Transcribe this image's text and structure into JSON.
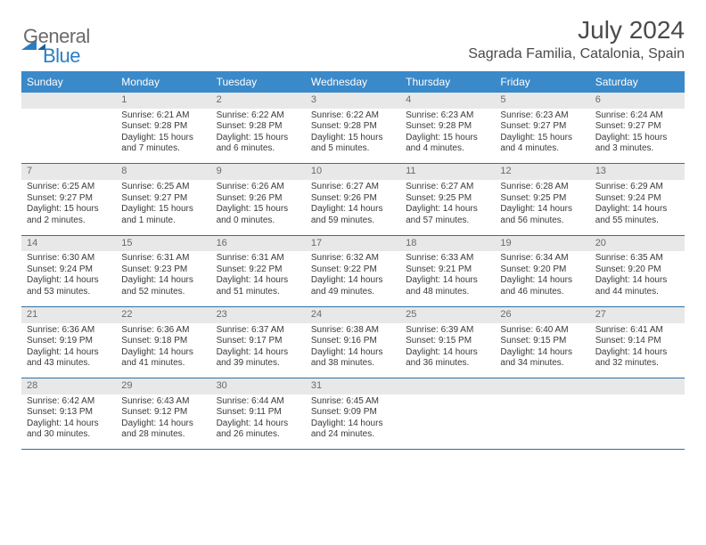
{
  "logo": {
    "general": "General",
    "blue": "Blue",
    "tri_color": "#2b7ec2",
    "text_gray": "#6a6a6a"
  },
  "title": "July 2024",
  "location": "Sagrada Familia, Catalonia, Spain",
  "colors": {
    "header_bg": "#3a89c9",
    "header_text": "#ffffff",
    "daynum_bg": "#e8e8e8",
    "daynum_text": "#6a6a6a",
    "rule": "#2f6fa3",
    "body_text": "#3a3a3a"
  },
  "day_headers": [
    "Sunday",
    "Monday",
    "Tuesday",
    "Wednesday",
    "Thursday",
    "Friday",
    "Saturday"
  ],
  "weeks": [
    [
      null,
      {
        "n": "1",
        "sunrise": "Sunrise: 6:21 AM",
        "sunset": "Sunset: 9:28 PM",
        "daylight": "Daylight: 15 hours and 7 minutes."
      },
      {
        "n": "2",
        "sunrise": "Sunrise: 6:22 AM",
        "sunset": "Sunset: 9:28 PM",
        "daylight": "Daylight: 15 hours and 6 minutes."
      },
      {
        "n": "3",
        "sunrise": "Sunrise: 6:22 AM",
        "sunset": "Sunset: 9:28 PM",
        "daylight": "Daylight: 15 hours and 5 minutes."
      },
      {
        "n": "4",
        "sunrise": "Sunrise: 6:23 AM",
        "sunset": "Sunset: 9:28 PM",
        "daylight": "Daylight: 15 hours and 4 minutes."
      },
      {
        "n": "5",
        "sunrise": "Sunrise: 6:23 AM",
        "sunset": "Sunset: 9:27 PM",
        "daylight": "Daylight: 15 hours and 4 minutes."
      },
      {
        "n": "6",
        "sunrise": "Sunrise: 6:24 AM",
        "sunset": "Sunset: 9:27 PM",
        "daylight": "Daylight: 15 hours and 3 minutes."
      }
    ],
    [
      {
        "n": "7",
        "sunrise": "Sunrise: 6:25 AM",
        "sunset": "Sunset: 9:27 PM",
        "daylight": "Daylight: 15 hours and 2 minutes."
      },
      {
        "n": "8",
        "sunrise": "Sunrise: 6:25 AM",
        "sunset": "Sunset: 9:27 PM",
        "daylight": "Daylight: 15 hours and 1 minute."
      },
      {
        "n": "9",
        "sunrise": "Sunrise: 6:26 AM",
        "sunset": "Sunset: 9:26 PM",
        "daylight": "Daylight: 15 hours and 0 minutes."
      },
      {
        "n": "10",
        "sunrise": "Sunrise: 6:27 AM",
        "sunset": "Sunset: 9:26 PM",
        "daylight": "Daylight: 14 hours and 59 minutes."
      },
      {
        "n": "11",
        "sunrise": "Sunrise: 6:27 AM",
        "sunset": "Sunset: 9:25 PM",
        "daylight": "Daylight: 14 hours and 57 minutes."
      },
      {
        "n": "12",
        "sunrise": "Sunrise: 6:28 AM",
        "sunset": "Sunset: 9:25 PM",
        "daylight": "Daylight: 14 hours and 56 minutes."
      },
      {
        "n": "13",
        "sunrise": "Sunrise: 6:29 AM",
        "sunset": "Sunset: 9:24 PM",
        "daylight": "Daylight: 14 hours and 55 minutes."
      }
    ],
    [
      {
        "n": "14",
        "sunrise": "Sunrise: 6:30 AM",
        "sunset": "Sunset: 9:24 PM",
        "daylight": "Daylight: 14 hours and 53 minutes."
      },
      {
        "n": "15",
        "sunrise": "Sunrise: 6:31 AM",
        "sunset": "Sunset: 9:23 PM",
        "daylight": "Daylight: 14 hours and 52 minutes."
      },
      {
        "n": "16",
        "sunrise": "Sunrise: 6:31 AM",
        "sunset": "Sunset: 9:22 PM",
        "daylight": "Daylight: 14 hours and 51 minutes."
      },
      {
        "n": "17",
        "sunrise": "Sunrise: 6:32 AM",
        "sunset": "Sunset: 9:22 PM",
        "daylight": "Daylight: 14 hours and 49 minutes."
      },
      {
        "n": "18",
        "sunrise": "Sunrise: 6:33 AM",
        "sunset": "Sunset: 9:21 PM",
        "daylight": "Daylight: 14 hours and 48 minutes."
      },
      {
        "n": "19",
        "sunrise": "Sunrise: 6:34 AM",
        "sunset": "Sunset: 9:20 PM",
        "daylight": "Daylight: 14 hours and 46 minutes."
      },
      {
        "n": "20",
        "sunrise": "Sunrise: 6:35 AM",
        "sunset": "Sunset: 9:20 PM",
        "daylight": "Daylight: 14 hours and 44 minutes."
      }
    ],
    [
      {
        "n": "21",
        "sunrise": "Sunrise: 6:36 AM",
        "sunset": "Sunset: 9:19 PM",
        "daylight": "Daylight: 14 hours and 43 minutes."
      },
      {
        "n": "22",
        "sunrise": "Sunrise: 6:36 AM",
        "sunset": "Sunset: 9:18 PM",
        "daylight": "Daylight: 14 hours and 41 minutes."
      },
      {
        "n": "23",
        "sunrise": "Sunrise: 6:37 AM",
        "sunset": "Sunset: 9:17 PM",
        "daylight": "Daylight: 14 hours and 39 minutes."
      },
      {
        "n": "24",
        "sunrise": "Sunrise: 6:38 AM",
        "sunset": "Sunset: 9:16 PM",
        "daylight": "Daylight: 14 hours and 38 minutes."
      },
      {
        "n": "25",
        "sunrise": "Sunrise: 6:39 AM",
        "sunset": "Sunset: 9:15 PM",
        "daylight": "Daylight: 14 hours and 36 minutes."
      },
      {
        "n": "26",
        "sunrise": "Sunrise: 6:40 AM",
        "sunset": "Sunset: 9:15 PM",
        "daylight": "Daylight: 14 hours and 34 minutes."
      },
      {
        "n": "27",
        "sunrise": "Sunrise: 6:41 AM",
        "sunset": "Sunset: 9:14 PM",
        "daylight": "Daylight: 14 hours and 32 minutes."
      }
    ],
    [
      {
        "n": "28",
        "sunrise": "Sunrise: 6:42 AM",
        "sunset": "Sunset: 9:13 PM",
        "daylight": "Daylight: 14 hours and 30 minutes."
      },
      {
        "n": "29",
        "sunrise": "Sunrise: 6:43 AM",
        "sunset": "Sunset: 9:12 PM",
        "daylight": "Daylight: 14 hours and 28 minutes."
      },
      {
        "n": "30",
        "sunrise": "Sunrise: 6:44 AM",
        "sunset": "Sunset: 9:11 PM",
        "daylight": "Daylight: 14 hours and 26 minutes."
      },
      {
        "n": "31",
        "sunrise": "Sunrise: 6:45 AM",
        "sunset": "Sunset: 9:09 PM",
        "daylight": "Daylight: 14 hours and 24 minutes."
      },
      null,
      null,
      null
    ]
  ]
}
